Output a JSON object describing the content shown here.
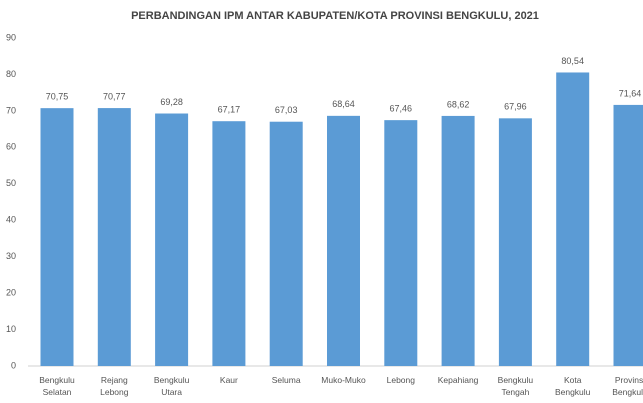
{
  "chart_data": {
    "type": "bar",
    "title": "PERBANDINGAN IPM ANTAR KABUPATEN/KOTA PROVINSI BENGKULU, 2021",
    "categories": [
      "Bengkulu Selatan",
      "Rejang Lebong",
      "Bengkulu Utara",
      "Kaur",
      "Seluma",
      "Muko-Muko",
      "Lebong",
      "Kepahiang",
      "Bengkulu Tengah",
      "Kota Bengkulu",
      "Provinsi Bengkulu"
    ],
    "values": [
      70.75,
      70.77,
      69.28,
      67.17,
      67.03,
      68.64,
      67.46,
      68.62,
      67.96,
      80.54,
      71.64
    ],
    "value_labels": [
      "70,75",
      "70,77",
      "69,28",
      "67,17",
      "67,03",
      "68,64",
      "67,46",
      "68,62",
      "67,96",
      "80,54",
      "71,64"
    ],
    "color": "#5b9bd5",
    "ylim": [
      0,
      90
    ],
    "yticks": [
      0,
      10,
      20,
      30,
      40,
      50,
      60,
      70,
      80,
      90
    ],
    "grid": false
  }
}
